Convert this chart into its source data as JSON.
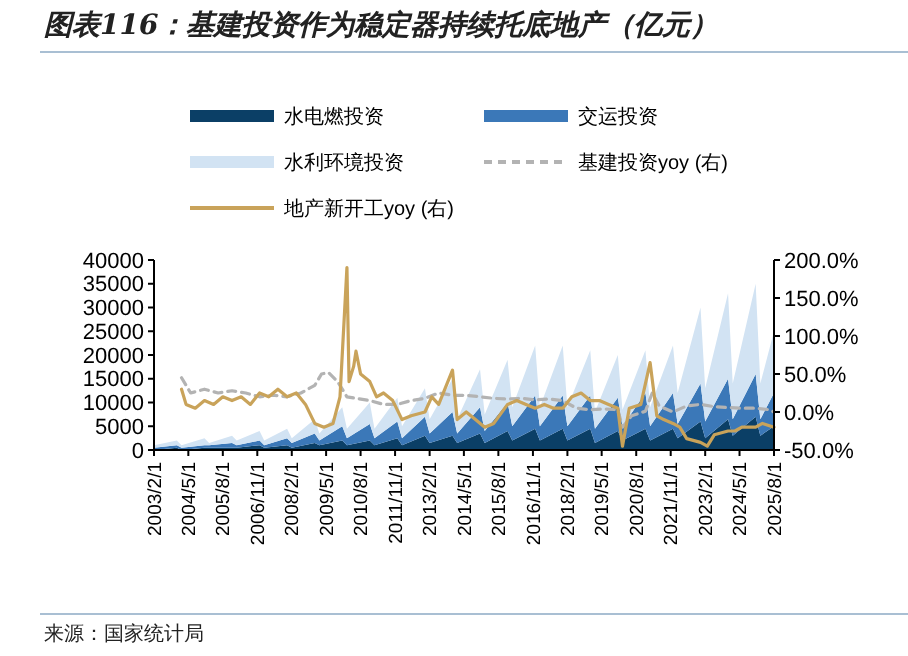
{
  "chart_data": {
    "type": "area",
    "stacked": true,
    "title": "图表116：基建投资作为稳定器持续托底地产（亿元）",
    "annotations": [
      "来源：国家统计局"
    ],
    "legend": "top",
    "x": [
      "2003-02",
      "2003-12",
      "2004-02",
      "2004-12",
      "2005-02",
      "2005-12",
      "2006-02",
      "2006-12",
      "2007-02",
      "2007-12",
      "2008-02",
      "2008-12",
      "2009-02",
      "2009-12",
      "2010-02",
      "2010-12",
      "2011-02",
      "2011-12",
      "2012-02",
      "2012-12",
      "2013-02",
      "2013-12",
      "2014-02",
      "2014-12",
      "2015-02",
      "2015-12",
      "2016-02",
      "2016-12",
      "2017-02",
      "2017-12",
      "2018-02",
      "2018-12",
      "2019-02",
      "2019-12",
      "2020-02",
      "2020-12",
      "2021-02",
      "2021-12",
      "2022-02",
      "2022-12",
      "2023-02",
      "2023-12",
      "2024-02",
      "2024-12",
      "2025-02",
      "2025-08"
    ],
    "xlim": [
      "2003-02",
      "2025-08"
    ],
    "xticks": [
      {
        "value": "2003-02-01",
        "label": "2003/2/1"
      },
      {
        "value": "2004-05-01",
        "label": "2004/5/1"
      },
      {
        "value": "2005-08-01",
        "label": "2005/8/1"
      },
      {
        "value": "2006-11-01",
        "label": "2006/11/1"
      },
      {
        "value": "2008-02-01",
        "label": "2008/2/1"
      },
      {
        "value": "2009-05-01",
        "label": "2009/5/1"
      },
      {
        "value": "2010-08-01",
        "label": "2010/8/1"
      },
      {
        "value": "2011-11-01",
        "label": "2011/11/1"
      },
      {
        "value": "2013-02-01",
        "label": "2013/2/1"
      },
      {
        "value": "2014-05-01",
        "label": "2014/5/1"
      },
      {
        "value": "2015-08-01",
        "label": "2015/8/1"
      },
      {
        "value": "2016-11-01",
        "label": "2016/11/1"
      },
      {
        "value": "2018-02-01",
        "label": "2018/2/1"
      },
      {
        "value": "2019-05-01",
        "label": "2019/5/1"
      },
      {
        "value": "2020-08-01",
        "label": "2020/8/1"
      },
      {
        "value": "2021-11-01",
        "label": "2021/11/1"
      },
      {
        "value": "2023-02-01",
        "label": "2023/2/1"
      },
      {
        "value": "2024-05-01",
        "label": "2024/5/1"
      },
      {
        "value": "2025-08-01",
        "label": "2025/8/1"
      }
    ],
    "ylim": [
      0,
      40000
    ],
    "yticks": [
      0,
      5000,
      10000,
      15000,
      20000,
      25000,
      30000,
      35000,
      40000
    ],
    "y2lim": [
      -50,
      200
    ],
    "y2ticks": [
      {
        "value": -50,
        "label": "-50.0%"
      },
      {
        "value": 0,
        "label": "0.0%"
      },
      {
        "value": 50,
        "label": "50.0%"
      },
      {
        "value": 100,
        "label": "100.0%"
      },
      {
        "value": 150,
        "label": "150.0%"
      },
      {
        "value": 200,
        "label": "200.0%"
      }
    ],
    "series": [
      {
        "name": "水电燃投资",
        "color": "#0b3f66",
        "values": [
          0,
          500,
          0,
          500,
          500,
          500,
          500,
          1000,
          500,
          1000,
          500,
          1500,
          1000,
          2000,
          1000,
          2000,
          1000,
          2500,
          1000,
          3000,
          1500,
          3000,
          1500,
          3500,
          1500,
          4000,
          2000,
          4500,
          2000,
          4500,
          2000,
          4500,
          1500,
          4000,
          2000,
          4500,
          2000,
          4500,
          2500,
          6000,
          2500,
          6500,
          3000,
          7000,
          3000,
          5000
        ]
      },
      {
        "name": "交运投资",
        "color": "#3b78b8",
        "values": [
          500,
          500,
          500,
          500,
          500,
          1000,
          500,
          1000,
          500,
          1500,
          1000,
          2000,
          1000,
          3000,
          1500,
          3500,
          1500,
          3500,
          1500,
          4000,
          2000,
          5000,
          2000,
          5500,
          2500,
          6000,
          3000,
          7000,
          3000,
          7000,
          3000,
          7000,
          3000,
          7000,
          3000,
          7500,
          3000,
          7500,
          3000,
          8000,
          3500,
          8500,
          3500,
          9000,
          3500,
          7000
        ]
      },
      {
        "name": "水利环境投资",
        "color": "#d2e3f3",
        "values": [
          500,
          1000,
          500,
          1500,
          500,
          1500,
          1000,
          2000,
          1000,
          2000,
          1000,
          3000,
          1500,
          4000,
          2000,
          4500,
          2000,
          5000,
          2500,
          6000,
          3000,
          7000,
          3000,
          8000,
          3500,
          9000,
          4000,
          10500,
          4000,
          10500,
          4000,
          9500,
          3500,
          9000,
          3500,
          9000,
          4000,
          10000,
          6500,
          16000,
          7000,
          18000,
          7500,
          19000,
          7500,
          13000
        ]
      },
      {
        "name": "基建投资yoy (右)",
        "type": "line",
        "axis": "y2",
        "line_style": "dashed",
        "color": "#b3b3b3",
        "x": [
          "2004-02",
          "2004-06",
          "2004-12",
          "2005-06",
          "2005-12",
          "2006-06",
          "2006-12",
          "2007-06",
          "2007-12",
          "2008-06",
          "2008-12",
          "2009-03",
          "2009-06",
          "2009-10",
          "2010-02",
          "2010-06",
          "2010-12",
          "2011-06",
          "2011-12",
          "2012-06",
          "2012-12",
          "2013-06",
          "2013-12",
          "2014-06",
          "2014-12",
          "2015-06",
          "2015-12",
          "2016-06",
          "2016-12",
          "2017-06",
          "2017-12",
          "2018-06",
          "2018-12",
          "2019-06",
          "2019-12",
          "2020-02",
          "2020-06",
          "2020-12",
          "2021-03",
          "2021-06",
          "2021-12",
          "2022-06",
          "2022-12",
          "2023-06",
          "2023-12",
          "2024-06",
          "2024-12",
          "2025-06",
          "2025-08"
        ],
        "values": [
          45,
          25,
          30,
          25,
          28,
          25,
          20,
          22,
          20,
          25,
          35,
          50,
          52,
          40,
          20,
          18,
          15,
          10,
          10,
          15,
          18,
          25,
          22,
          22,
          20,
          18,
          17,
          18,
          16,
          17,
          15,
          5,
          3,
          4,
          3,
          -20,
          -5,
          1,
          25,
          8,
          0,
          8,
          10,
          7,
          6,
          5,
          5,
          3,
          0
        ]
      },
      {
        "name": "地产新开工yoy (右)",
        "type": "line",
        "axis": "y2",
        "line_style": "solid",
        "color": "#c9a35a",
        "x": [
          "2004-02",
          "2004-04",
          "2004-08",
          "2004-12",
          "2005-04",
          "2005-08",
          "2005-12",
          "2006-04",
          "2006-08",
          "2006-12",
          "2007-04",
          "2007-08",
          "2007-12",
          "2008-04",
          "2008-08",
          "2008-12",
          "2009-04",
          "2009-08",
          "2009-11",
          "2010-02",
          "2010-03",
          "2010-05",
          "2010-06",
          "2010-08",
          "2010-12",
          "2011-03",
          "2011-06",
          "2011-10",
          "2012-02",
          "2012-06",
          "2012-12",
          "2013-03",
          "2013-06",
          "2013-12",
          "2014-02",
          "2014-06",
          "2014-10",
          "2015-02",
          "2015-06",
          "2015-12",
          "2016-04",
          "2016-08",
          "2016-12",
          "2017-04",
          "2017-08",
          "2017-12",
          "2018-04",
          "2018-08",
          "2018-12",
          "2019-04",
          "2019-08",
          "2019-12",
          "2020-02",
          "2020-05",
          "2020-10",
          "2021-02",
          "2021-05",
          "2021-08",
          "2021-12",
          "2022-03",
          "2022-06",
          "2022-12",
          "2023-03",
          "2023-06",
          "2023-12",
          "2024-03",
          "2024-06",
          "2024-12",
          "2025-03",
          "2025-08"
        ],
        "values": [
          30,
          10,
          5,
          15,
          10,
          20,
          15,
          20,
          10,
          25,
          20,
          30,
          20,
          25,
          10,
          -15,
          -20,
          -15,
          20,
          190,
          40,
          60,
          80,
          50,
          40,
          20,
          25,
          15,
          -10,
          -5,
          0,
          20,
          10,
          55,
          -10,
          0,
          -10,
          -20,
          -15,
          10,
          15,
          10,
          5,
          10,
          5,
          5,
          20,
          25,
          15,
          15,
          10,
          5,
          -45,
          5,
          10,
          65,
          -5,
          -10,
          -15,
          -20,
          -35,
          -40,
          -45,
          -30,
          -25,
          -25,
          -20,
          -20,
          -15,
          -20
        ]
      }
    ]
  }
}
